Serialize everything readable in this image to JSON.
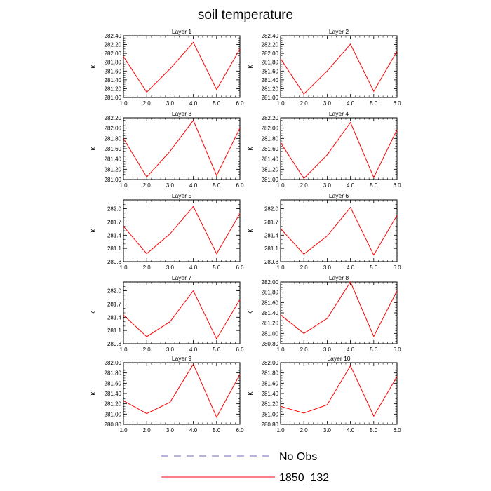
{
  "figure": {
    "title": "soil temperature",
    "legend": [
      {
        "label": "No Obs",
        "color": "#6a6ab8",
        "style": "dashed"
      },
      {
        "label": "1850_132",
        "color": "#ff0000",
        "style": "solid"
      }
    ]
  },
  "chart_data": [
    {
      "type": "line",
      "title": "Layer 1",
      "ylabel": "K",
      "x": [
        1,
        2,
        3,
        4,
        5,
        6
      ],
      "xlim": [
        1,
        6
      ],
      "xticks": [
        "1.0",
        "2.0",
        "3.0",
        "4.0",
        "5.0",
        "6.0"
      ],
      "ylim": [
        281.0,
        282.4
      ],
      "yticks": [
        "281.00",
        "281.20",
        "281.40",
        "281.60",
        "281.80",
        "282.00",
        "282.20",
        "282.40"
      ],
      "ytick_values": [
        281.0,
        281.2,
        281.4,
        281.6,
        281.8,
        282.0,
        282.2,
        282.4
      ],
      "series": [
        {
          "name": "1850_132",
          "values": [
            281.93,
            281.12,
            281.65,
            282.25,
            281.18,
            282.1
          ]
        }
      ]
    },
    {
      "type": "line",
      "title": "Layer 2",
      "ylabel": "K",
      "x": [
        1,
        2,
        3,
        4,
        5,
        6
      ],
      "xlim": [
        1,
        6
      ],
      "xticks": [
        "1.0",
        "2.0",
        "3.0",
        "4.0",
        "5.0",
        "6.0"
      ],
      "ylim": [
        281.0,
        282.4
      ],
      "yticks": [
        "281.00",
        "281.20",
        "281.40",
        "281.60",
        "281.80",
        "282.00",
        "282.20",
        "282.40"
      ],
      "ytick_values": [
        281.0,
        281.2,
        281.4,
        281.6,
        281.8,
        282.0,
        282.2,
        282.4
      ],
      "series": [
        {
          "name": "1850_132",
          "values": [
            281.88,
            281.08,
            281.6,
            282.21,
            281.14,
            282.05
          ]
        }
      ]
    },
    {
      "type": "line",
      "title": "Layer 3",
      "ylabel": "K",
      "x": [
        1,
        2,
        3,
        4,
        5,
        6
      ],
      "xlim": [
        1,
        6
      ],
      "xticks": [
        "1.0",
        "2.0",
        "3.0",
        "4.0",
        "5.0",
        "6.0"
      ],
      "ylim": [
        281.0,
        282.2
      ],
      "yticks": [
        "281.00",
        "281.20",
        "281.40",
        "281.60",
        "281.80",
        "282.00",
        "282.20"
      ],
      "ytick_values": [
        281.0,
        281.2,
        281.4,
        281.6,
        281.8,
        282.0,
        282.2
      ],
      "series": [
        {
          "name": "1850_132",
          "values": [
            281.8,
            281.05,
            281.55,
            282.15,
            281.08,
            282.0
          ]
        }
      ]
    },
    {
      "type": "line",
      "title": "Layer 4",
      "ylabel": "K",
      "x": [
        1,
        2,
        3,
        4,
        5,
        6
      ],
      "xlim": [
        1,
        6
      ],
      "xticks": [
        "1.0",
        "2.0",
        "3.0",
        "4.0",
        "5.0",
        "6.0"
      ],
      "ylim": [
        281.0,
        282.2
      ],
      "yticks": [
        "281.00",
        "281.20",
        "281.40",
        "281.60",
        "281.80",
        "282.00",
        "282.20"
      ],
      "ytick_values": [
        281.0,
        281.2,
        281.4,
        281.6,
        281.8,
        282.0,
        282.2
      ],
      "series": [
        {
          "name": "1850_132",
          "values": [
            281.72,
            281.02,
            281.48,
            282.11,
            281.04,
            281.97
          ]
        }
      ]
    },
    {
      "type": "line",
      "title": "Layer 5",
      "ylabel": "K",
      "x": [
        1,
        2,
        3,
        4,
        5,
        6
      ],
      "xlim": [
        1,
        6
      ],
      "xticks": [
        "1.0",
        "2.0",
        "3.0",
        "4.0",
        "5.0",
        "6.0"
      ],
      "ylim": [
        280.8,
        282.2
      ],
      "yticks": [
        "280.8",
        "281.1",
        "281.4",
        "281.7",
        "282.0"
      ],
      "ytick_values": [
        280.8,
        281.1,
        281.4,
        281.7,
        282.0
      ],
      "series": [
        {
          "name": "1850_132",
          "values": [
            281.6,
            280.98,
            281.43,
            282.05,
            280.98,
            281.89
          ]
        }
      ]
    },
    {
      "type": "line",
      "title": "Layer 6",
      "ylabel": "K",
      "x": [
        1,
        2,
        3,
        4,
        5,
        6
      ],
      "xlim": [
        1,
        6
      ],
      "xticks": [
        "1.0",
        "2.0",
        "3.0",
        "4.0",
        "5.0",
        "6.0"
      ],
      "ylim": [
        280.8,
        282.2
      ],
      "yticks": [
        "280.8",
        "281.1",
        "281.4",
        "281.7",
        "282.0"
      ],
      "ytick_values": [
        280.8,
        281.1,
        281.4,
        281.7,
        282.0
      ],
      "series": [
        {
          "name": "1850_132",
          "values": [
            281.55,
            280.97,
            281.38,
            282.03,
            280.95,
            281.85
          ]
        }
      ]
    },
    {
      "type": "line",
      "title": "Layer 7",
      "ylabel": "K",
      "x": [
        1,
        2,
        3,
        4,
        5,
        6
      ],
      "xlim": [
        1,
        6
      ],
      "xticks": [
        "1.0",
        "2.0",
        "3.0",
        "4.0",
        "5.0",
        "6.0"
      ],
      "ylim": [
        280.8,
        282.2
      ],
      "yticks": [
        "280.8",
        "281.1",
        "281.4",
        "281.7",
        "282.0"
      ],
      "ytick_values": [
        280.8,
        281.1,
        281.4,
        281.7,
        282.0
      ],
      "series": [
        {
          "name": "1850_132",
          "values": [
            281.45,
            280.96,
            281.3,
            282.0,
            280.91,
            281.8
          ]
        }
      ]
    },
    {
      "type": "line",
      "title": "Layer 8",
      "ylabel": "K",
      "x": [
        1,
        2,
        3,
        4,
        5,
        6
      ],
      "xlim": [
        1,
        6
      ],
      "xticks": [
        "1.0",
        "2.0",
        "3.0",
        "4.0",
        "5.0",
        "6.0"
      ],
      "ylim": [
        280.8,
        282.0
      ],
      "yticks": [
        "280.80",
        "281.00",
        "281.20",
        "281.40",
        "281.60",
        "281.80",
        "282.00"
      ],
      "ytick_values": [
        280.8,
        281.0,
        281.2,
        281.4,
        281.6,
        281.8,
        282.0
      ],
      "series": [
        {
          "name": "1850_132",
          "values": [
            281.36,
            281.0,
            281.29,
            282.0,
            280.94,
            281.83
          ]
        }
      ]
    },
    {
      "type": "line",
      "title": "Layer 9",
      "ylabel": "K",
      "x": [
        1,
        2,
        3,
        4,
        5,
        6
      ],
      "xlim": [
        1,
        6
      ],
      "xticks": [
        "1.0",
        "2.0",
        "3.0",
        "4.0",
        "5.0",
        "6.0"
      ],
      "ylim": [
        280.8,
        282.0
      ],
      "yticks": [
        "280.80",
        "281.00",
        "281.20",
        "281.40",
        "281.60",
        "281.80",
        "282.00"
      ],
      "ytick_values": [
        280.8,
        281.0,
        281.2,
        281.4,
        281.6,
        281.8,
        282.0
      ],
      "series": [
        {
          "name": "1850_132",
          "values": [
            281.26,
            281.01,
            281.23,
            281.97,
            280.94,
            281.77
          ]
        }
      ]
    },
    {
      "type": "line",
      "title": "Layer 10",
      "ylabel": "K",
      "x": [
        1,
        2,
        3,
        4,
        5,
        6
      ],
      "xlim": [
        1,
        6
      ],
      "xticks": [
        "1.0",
        "2.0",
        "3.0",
        "4.0",
        "5.0",
        "6.0"
      ],
      "ylim": [
        280.8,
        282.0
      ],
      "yticks": [
        "280.80",
        "281.00",
        "281.20",
        "281.40",
        "281.60",
        "281.80",
        "282.00"
      ],
      "ytick_values": [
        280.8,
        281.0,
        281.2,
        281.4,
        281.6,
        281.8,
        282.0
      ],
      "series": [
        {
          "name": "1850_132",
          "values": [
            281.15,
            281.02,
            281.18,
            281.94,
            280.96,
            281.73
          ]
        }
      ]
    }
  ]
}
